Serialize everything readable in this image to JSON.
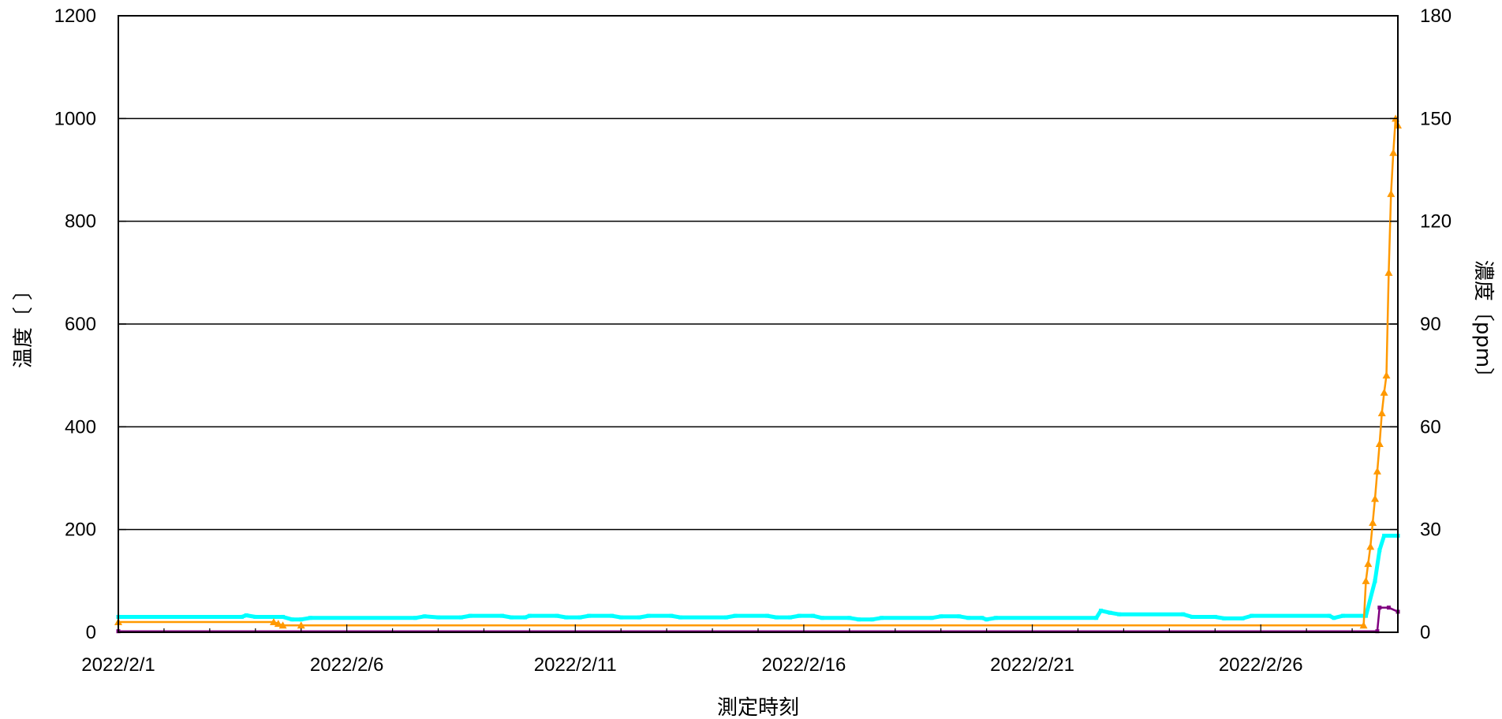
{
  "chart_data": {
    "type": "line",
    "title": "",
    "xlabel": "測定時刻",
    "ylabel_left": "温度〔 〕",
    "ylabel_right": "濃度〔ppm〕",
    "x_ticks": [
      "2022/2/1",
      "2022/2/6",
      "2022/2/11",
      "2022/2/16",
      "2022/2/21",
      "2022/2/26"
    ],
    "x_range_days": [
      0,
      28
    ],
    "y_left_ticks": [
      "0",
      "200",
      "400",
      "600",
      "800",
      "1000",
      "1200"
    ],
    "y_left_range": [
      0,
      1200
    ],
    "y_right_ticks": [
      "0",
      "30",
      "60",
      "90",
      "120",
      "150",
      "180"
    ],
    "y_right_range": [
      0,
      180
    ],
    "grid": "horizontal",
    "series": [
      {
        "color": "#00ffff",
        "axis": "left",
        "marker": "square",
        "points": [
          [
            0,
            30
          ],
          [
            2.7,
            30
          ],
          [
            2.8,
            33
          ],
          [
            3.0,
            30
          ],
          [
            3.6,
            30
          ],
          [
            3.8,
            25
          ],
          [
            4.0,
            25
          ],
          [
            4.2,
            28
          ],
          [
            6.5,
            28
          ],
          [
            6.7,
            31
          ],
          [
            7.0,
            29
          ],
          [
            7.5,
            29
          ],
          [
            7.7,
            32
          ],
          [
            8.4,
            32
          ],
          [
            8.6,
            29
          ],
          [
            8.9,
            29
          ],
          [
            9.0,
            32
          ],
          [
            9.6,
            32
          ],
          [
            9.8,
            29
          ],
          [
            10.1,
            29
          ],
          [
            10.3,
            32
          ],
          [
            10.8,
            32
          ],
          [
            11.0,
            29
          ],
          [
            11.4,
            29
          ],
          [
            11.6,
            32
          ],
          [
            12.1,
            32
          ],
          [
            12.3,
            29
          ],
          [
            13.3,
            29
          ],
          [
            13.5,
            32
          ],
          [
            14.2,
            32
          ],
          [
            14.4,
            29
          ],
          [
            14.7,
            29
          ],
          [
            14.9,
            32
          ],
          [
            15.2,
            32
          ],
          [
            15.4,
            28
          ],
          [
            16.0,
            28
          ],
          [
            16.2,
            25
          ],
          [
            16.5,
            25
          ],
          [
            16.7,
            28
          ],
          [
            17.8,
            28
          ],
          [
            18.0,
            31
          ],
          [
            18.4,
            31
          ],
          [
            18.6,
            28
          ],
          [
            18.9,
            28
          ],
          [
            19.0,
            25
          ],
          [
            19.2,
            28
          ],
          [
            21.4,
            28
          ],
          [
            21.5,
            42
          ],
          [
            21.7,
            38
          ],
          [
            21.9,
            35
          ],
          [
            23.3,
            35
          ],
          [
            23.5,
            30
          ],
          [
            24.0,
            30
          ],
          [
            24.2,
            27
          ],
          [
            24.6,
            27
          ],
          [
            24.8,
            32
          ],
          [
            26.5,
            32
          ],
          [
            26.6,
            28
          ],
          [
            26.8,
            32
          ],
          [
            27.3,
            32
          ],
          [
            27.5,
            100
          ],
          [
            27.6,
            160
          ],
          [
            27.7,
            188
          ],
          [
            28.0,
            188
          ]
        ]
      },
      {
        "color": "#ff9900",
        "axis": "right",
        "marker": "triangle",
        "points": [
          [
            0,
            3
          ],
          [
            3.4,
            3
          ],
          [
            3.5,
            2.5
          ],
          [
            3.6,
            2
          ],
          [
            4.0,
            2
          ],
          [
            27.25,
            2
          ],
          [
            27.3,
            15
          ],
          [
            27.35,
            20
          ],
          [
            27.4,
            25
          ],
          [
            27.45,
            32
          ],
          [
            27.5,
            39
          ],
          [
            27.55,
            47
          ],
          [
            27.6,
            55
          ],
          [
            27.65,
            64
          ],
          [
            27.7,
            70
          ],
          [
            27.75,
            75
          ],
          [
            27.8,
            105
          ],
          [
            27.85,
            128
          ],
          [
            27.9,
            140
          ],
          [
            27.95,
            150
          ],
          [
            28.0,
            148
          ]
        ]
      },
      {
        "color": "#800080",
        "axis": "left",
        "marker": "square",
        "points": [
          [
            0,
            2
          ],
          [
            27.55,
            2
          ],
          [
            27.6,
            48
          ],
          [
            27.8,
            48
          ],
          [
            28.0,
            40
          ]
        ]
      }
    ]
  }
}
